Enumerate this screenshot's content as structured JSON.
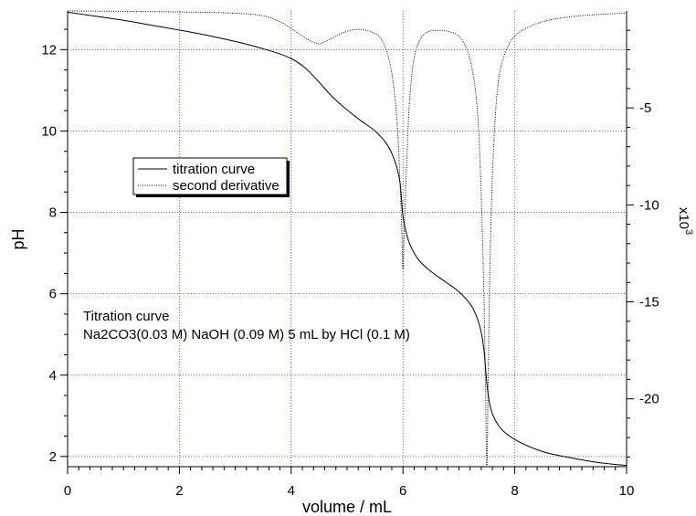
{
  "chart_data": {
    "type": "line",
    "xlabel": "volume / mL",
    "ylabel": "pH",
    "y2label_prefix": "x10",
    "y2label_exp": "3",
    "xlim": [
      0,
      10
    ],
    "ylim": [
      1.75,
      12.95
    ],
    "y2lim": [
      -23.5,
      0
    ],
    "xticks": [
      0,
      2,
      4,
      6,
      8,
      10
    ],
    "yticks": [
      2,
      4,
      6,
      8,
      10,
      12
    ],
    "y2ticks": [
      -5,
      -10,
      -15,
      -20
    ],
    "grid": true,
    "legend_position": "upper-left",
    "annotation": [
      "Titration curve",
      "Na2CO3(0.03 M) NaOH (0.09 M) 5 mL by HCl (0.1 M)"
    ],
    "series": [
      {
        "name": "titration curve",
        "axis": "left",
        "style": "solid",
        "x": [
          0,
          0.5,
          1,
          1.5,
          2,
          2.5,
          3,
          3.5,
          4,
          4.25,
          4.5,
          4.75,
          5,
          5.25,
          5.5,
          5.7,
          5.8,
          5.9,
          5.95,
          6.0,
          6.05,
          6.1,
          6.2,
          6.3,
          6.5,
          6.75,
          7,
          7.2,
          7.3,
          7.4,
          7.45,
          7.5,
          7.55,
          7.6,
          7.7,
          7.8,
          8,
          8.5,
          9,
          9.5,
          10
        ],
        "y": [
          12.92,
          12.82,
          12.72,
          12.6,
          12.48,
          12.35,
          12.2,
          12.02,
          11.78,
          11.55,
          11.2,
          10.82,
          10.52,
          10.25,
          10.0,
          9.7,
          9.45,
          9.05,
          8.7,
          7.9,
          7.55,
          7.3,
          7.0,
          6.8,
          6.55,
          6.3,
          6.05,
          5.75,
          5.5,
          5.05,
          4.6,
          3.8,
          3.3,
          3.05,
          2.78,
          2.62,
          2.42,
          2.12,
          1.97,
          1.85,
          1.78
        ]
      },
      {
        "name": "second derivative",
        "axis": "right",
        "style": "dotted",
        "x": [
          0,
          1,
          2,
          3,
          3.5,
          3.8,
          4.0,
          4.2,
          4.4,
          4.5,
          4.6,
          4.8,
          5.0,
          5.2,
          5.4,
          5.6,
          5.7,
          5.8,
          5.85,
          5.9,
          5.95,
          5.98,
          6.0,
          6.02,
          6.05,
          6.1,
          6.15,
          6.2,
          6.3,
          6.4,
          6.6,
          6.8,
          7.0,
          7.1,
          7.2,
          7.3,
          7.35,
          7.4,
          7.45,
          7.48,
          7.5,
          7.52,
          7.55,
          7.6,
          7.65,
          7.7,
          7.8,
          7.9,
          8.0,
          8.2,
          8.5,
          9,
          10
        ],
        "y": [
          0,
          -0.02,
          -0.05,
          -0.12,
          -0.25,
          -0.55,
          -0.9,
          -1.3,
          -1.62,
          -1.7,
          -1.6,
          -1.3,
          -1.05,
          -0.95,
          -1.05,
          -1.4,
          -2.0,
          -3.2,
          -4.3,
          -6.0,
          -9.0,
          -11.5,
          -13.3,
          -11.5,
          -9.0,
          -5.5,
          -3.5,
          -2.4,
          -1.5,
          -1.15,
          -1.0,
          -1.05,
          -1.3,
          -1.7,
          -2.5,
          -4.2,
          -6.0,
          -9.5,
          -15.0,
          -20.0,
          -23.5,
          -20.0,
          -14.0,
          -8.5,
          -5.5,
          -3.8,
          -2.4,
          -1.7,
          -1.3,
          -0.9,
          -0.55,
          -0.3,
          -0.1
        ]
      }
    ]
  }
}
